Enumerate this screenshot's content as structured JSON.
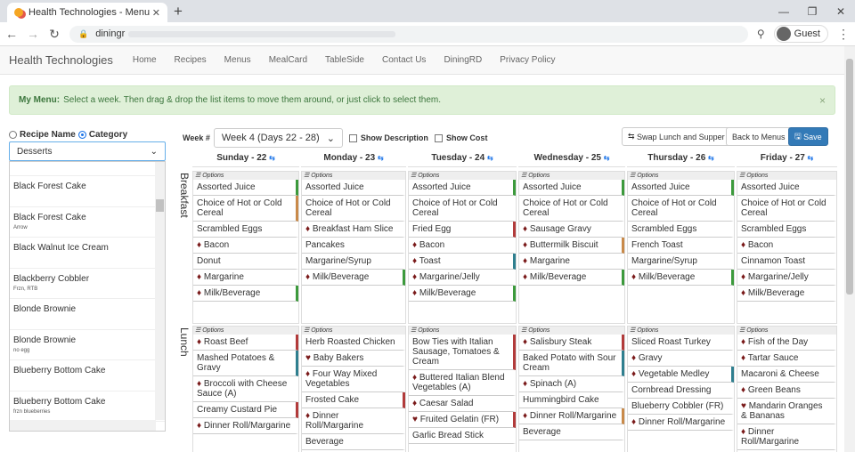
{
  "browser": {
    "tab_title": "Health Technologies - Menu Plan",
    "url": "diningr",
    "profile": "Guest"
  },
  "nav": {
    "brand": "Health Technologies",
    "links": [
      "Home",
      "Recipes",
      "Menus",
      "MealCard",
      "TableSide",
      "Contact Us",
      "DiningRD",
      "Privacy Policy"
    ]
  },
  "alert": {
    "title": "My Menu:",
    "text": "Select a week. Then drag & drop the list items to move them around, or just click to select them.",
    "close": "×"
  },
  "filter": {
    "recipe_name": "Recipe Name",
    "category": "Category",
    "selected": "Desserts"
  },
  "recipes": [
    {
      "name": "Black Forest Cake",
      "note": ""
    },
    {
      "name": "Black Forest Cake",
      "note": "Arrow"
    },
    {
      "name": "Black Walnut Ice Cream",
      "note": ""
    },
    {
      "name": "Blackberry Cobbler",
      "note": "Frzn, RTB"
    },
    {
      "name": "Blonde Brownie",
      "note": ""
    },
    {
      "name": "Blonde Brownie",
      "note": "no egg"
    },
    {
      "name": "Blueberry Bottom Cake",
      "note": ""
    },
    {
      "name": "Blueberry Bottom Cake",
      "note": "frzn blueberries"
    }
  ],
  "toolbar": {
    "week_label": "Week #",
    "week_value": "Week 4 (Days 22 - 28)",
    "show_description": "Show Description",
    "show_cost": "Show Cost",
    "swap": "Swap Lunch and Supper",
    "back": "Back to Menus",
    "save": "Save"
  },
  "meals": {
    "breakfast": "Breakfast",
    "lunch": "Lunch",
    "options": "Options"
  },
  "days": [
    {
      "name": "Sunday - 22",
      "breakfast": [
        {
          "t": "Assorted Juice",
          "c": "g"
        },
        {
          "t": "Choice of Hot or Cold Cereal",
          "c": "o"
        },
        {
          "t": "Scrambled Eggs",
          "c": ""
        },
        {
          "t": "Bacon",
          "c": "",
          "d": true
        },
        {
          "t": "Donut",
          "c": ""
        },
        {
          "t": "Margarine",
          "c": "",
          "d": true
        },
        {
          "t": "Milk/Beverage",
          "c": "g",
          "d": true
        }
      ],
      "lunch": [
        {
          "t": "Roast Beef",
          "c": "r",
          "d": true
        },
        {
          "t": "Mashed Potatoes & Gravy",
          "c": "b"
        },
        {
          "t": "Broccoli with Cheese Sauce (A)",
          "c": "",
          "d": true
        },
        {
          "t": "Creamy Custard Pie",
          "c": "r"
        },
        {
          "t": "Dinner Roll/Margarine",
          "c": "",
          "d": true
        }
      ]
    },
    {
      "name": "Monday - 23",
      "breakfast": [
        {
          "t": "Assorted Juice",
          "c": ""
        },
        {
          "t": "Choice of Hot or Cold Cereal",
          "c": ""
        },
        {
          "t": "Breakfast Ham Slice",
          "c": "",
          "d": true
        },
        {
          "t": "Pancakes",
          "c": ""
        },
        {
          "t": "Margarine/Syrup",
          "c": ""
        },
        {
          "t": "Milk/Beverage",
          "c": "g",
          "d": true
        }
      ],
      "lunch": [
        {
          "t": "Herb Roasted Chicken",
          "c": ""
        },
        {
          "t": "Baby Bakers",
          "c": "",
          "h": true
        },
        {
          "t": "Four Way Mixed Vegetables",
          "c": "",
          "d": true
        },
        {
          "t": "Frosted Cake",
          "c": "r"
        },
        {
          "t": "Dinner Roll/Margarine",
          "c": "",
          "d": true
        },
        {
          "t": "Beverage",
          "c": ""
        }
      ]
    },
    {
      "name": "Tuesday - 24",
      "breakfast": [
        {
          "t": "Assorted Juice",
          "c": "g"
        },
        {
          "t": "Choice of Hot or Cold Cereal",
          "c": ""
        },
        {
          "t": "Fried Egg",
          "c": "r"
        },
        {
          "t": "Bacon",
          "c": "",
          "d": true
        },
        {
          "t": "Toast",
          "c": "b",
          "d": true
        },
        {
          "t": "Margarine/Jelly",
          "c": "",
          "d": true
        },
        {
          "t": "Milk/Beverage",
          "c": "g",
          "d": true
        }
      ],
      "lunch": [
        {
          "t": "Bow Ties with Italian Sausage, Tomatoes & Cream",
          "c": "r"
        },
        {
          "t": "Buttered Italian Blend Vegetables (A)",
          "c": "",
          "d": true
        },
        {
          "t": "Caesar Salad",
          "c": "",
          "d": true
        },
        {
          "t": "Fruited Gelatin (FR)",
          "c": "r",
          "h": true
        },
        {
          "t": "Garlic Bread Stick",
          "c": ""
        }
      ]
    },
    {
      "name": "Wednesday - 25",
      "breakfast": [
        {
          "t": "Assorted Juice",
          "c": "g"
        },
        {
          "t": "Choice of Hot or Cold Cereal",
          "c": ""
        },
        {
          "t": "Sausage Gravy",
          "c": "",
          "d": true
        },
        {
          "t": "Buttermilk Biscuit",
          "c": "o",
          "d": true
        },
        {
          "t": "Margarine",
          "c": "",
          "d": true
        },
        {
          "t": "Milk/Beverage",
          "c": "g",
          "d": true
        }
      ],
      "lunch": [
        {
          "t": "Salisbury Steak",
          "c": "r",
          "d": true
        },
        {
          "t": "Baked Potato with Sour Cream",
          "c": "b"
        },
        {
          "t": "Spinach (A)",
          "c": "",
          "d": true
        },
        {
          "t": "Hummingbird Cake",
          "c": ""
        },
        {
          "t": "Dinner Roll/Margarine",
          "c": "o",
          "d": true
        },
        {
          "t": "Beverage",
          "c": ""
        }
      ]
    },
    {
      "name": "Thursday - 26",
      "breakfast": [
        {
          "t": "Assorted Juice",
          "c": "g"
        },
        {
          "t": "Choice of Hot or Cold Cereal",
          "c": ""
        },
        {
          "t": "Scrambled Eggs",
          "c": ""
        },
        {
          "t": "French Toast",
          "c": ""
        },
        {
          "t": "Margarine/Syrup",
          "c": ""
        },
        {
          "t": "Milk/Beverage",
          "c": "g",
          "d": true
        }
      ],
      "lunch": [
        {
          "t": "Sliced Roast Turkey",
          "c": ""
        },
        {
          "t": "Gravy",
          "c": "",
          "d": true
        },
        {
          "t": "Vegetable Medley",
          "c": "b",
          "d": true
        },
        {
          "t": "Cornbread Dressing",
          "c": ""
        },
        {
          "t": "Blueberry Cobbler (FR)",
          "c": ""
        },
        {
          "t": "Dinner Roll/Margarine",
          "c": "",
          "d": true
        }
      ]
    },
    {
      "name": "Friday - 27",
      "breakfast": [
        {
          "t": "Assorted Juice",
          "c": ""
        },
        {
          "t": "Choice of Hot or Cold Cereal",
          "c": ""
        },
        {
          "t": "Scrambled Eggs",
          "c": ""
        },
        {
          "t": "Bacon",
          "c": "",
          "d": true
        },
        {
          "t": "Cinnamon Toast",
          "c": ""
        },
        {
          "t": "Margarine/Jelly",
          "c": "",
          "d": true
        },
        {
          "t": "Milk/Beverage",
          "c": "",
          "d": true
        }
      ],
      "lunch": [
        {
          "t": "Fish of the Day",
          "c": "",
          "d": true
        },
        {
          "t": "Tartar Sauce",
          "c": "",
          "d": true
        },
        {
          "t": "Macaroni & Cheese",
          "c": ""
        },
        {
          "t": "Green Beans",
          "c": "",
          "d": true
        },
        {
          "t": "Mandarin Oranges & Bananas",
          "c": "",
          "h": true
        },
        {
          "t": "Dinner Roll/Margarine",
          "c": "",
          "d": true
        }
      ]
    }
  ]
}
